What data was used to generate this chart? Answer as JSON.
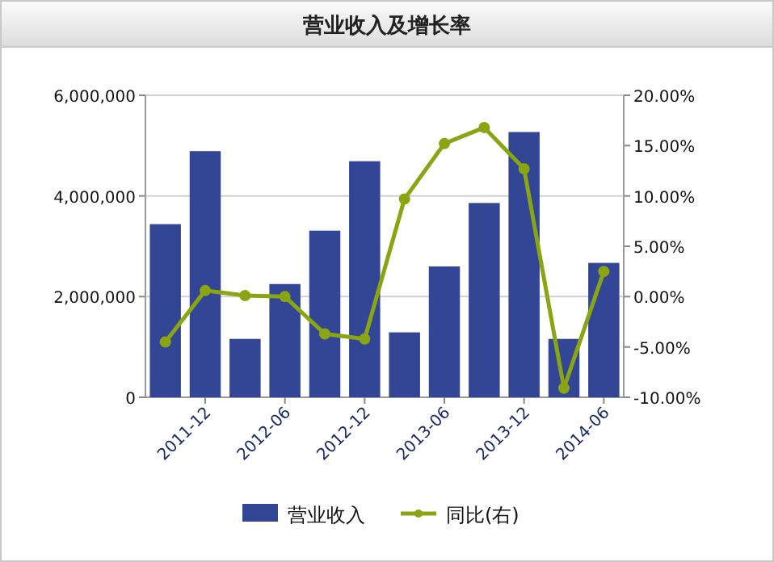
{
  "chart_data": {
    "type": "bar",
    "title": "营业收入及增长率",
    "categories": [
      null,
      "2011-12",
      null,
      "2012-06",
      null,
      "2012-12",
      null,
      "2013-06",
      null,
      "2013-12",
      null,
      "2014-06"
    ],
    "series": [
      {
        "name": "营业收入",
        "color": "#334696",
        "values": [
          3440000,
          4890000,
          1160000,
          2250000,
          3310000,
          4690000,
          1290000,
          2600000,
          3860000,
          5270000,
          1160000,
          2670000
        ]
      },
      {
        "name": "同比(右)",
        "type": "line",
        "axis": "y2",
        "color": "#8aa512",
        "marker": "circle",
        "values": [
          -4.5,
          0.6,
          0.1,
          0,
          -3.7,
          -4.2,
          9.7,
          15.2,
          16.8,
          12.7,
          -9.1,
          2.5
        ]
      }
    ],
    "ylim": [
      0,
      6000000
    ],
    "yticks": [
      0,
      {
        "value": 2000000,
        "label": "2,000,000"
      },
      {
        "value": 4000000,
        "label": "4,000,000"
      },
      {
        "value": 6000000,
        "label": "6,000,000"
      }
    ],
    "y2lim": [
      -10,
      20
    ],
    "y2ticks": [
      {
        "value": -10,
        "label": "-10.00%"
      },
      {
        "value": -5,
        "label": "-5.00%"
      },
      {
        "value": 0,
        "label": "0.00%"
      },
      {
        "value": 5,
        "label": "5.00%"
      },
      {
        "value": 10,
        "label": "10.00%"
      },
      {
        "value": 15,
        "label": "15.00%"
      },
      {
        "value": 20,
        "label": "20.00%"
      }
    ],
    "grid": "y",
    "legend": "bottom"
  }
}
